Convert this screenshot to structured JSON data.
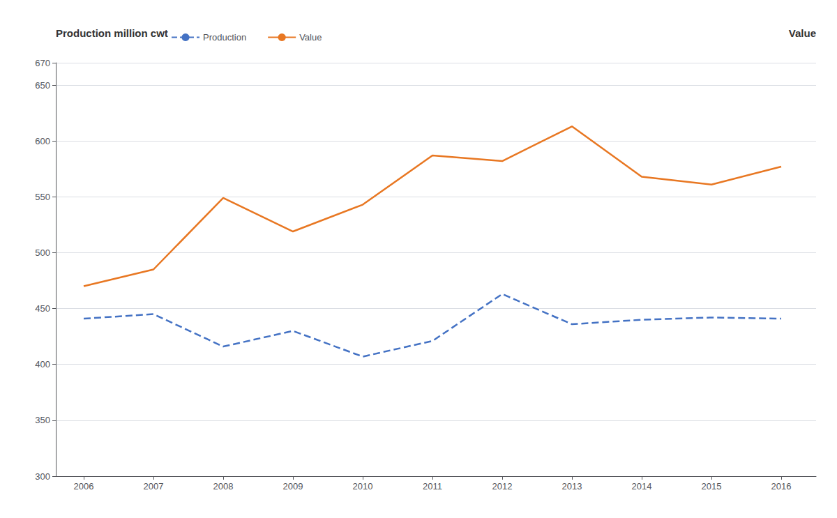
{
  "chart_data": {
    "type": "line",
    "ylabel": "Production million cwt",
    "annotations": [
      "Value"
    ],
    "x": [
      2006,
      2007,
      2008,
      2009,
      2010,
      2011,
      2012,
      2013,
      2014,
      2015,
      2016
    ],
    "series": [
      {
        "name": "Production",
        "color": "#4472C4",
        "line_style": "dashed",
        "values": [
          441,
          445,
          416,
          430,
          407,
          421,
          463,
          436,
          440,
          442,
          441
        ]
      },
      {
        "name": "Value",
        "color": "#E87722",
        "line_style": "solid",
        "values": [
          470,
          485,
          549,
          519,
          543,
          587,
          582,
          613,
          568,
          561,
          577
        ]
      }
    ],
    "xlim": [
      2005.6,
      2016.5
    ],
    "xticks": [
      2006,
      2007,
      2008,
      2009,
      2010,
      2011,
      2012,
      2013,
      2014,
      2015,
      2016
    ],
    "ylim": [
      300,
      670
    ],
    "yticks": [
      300,
      350,
      400,
      450,
      500,
      550,
      600,
      650
    ],
    "grid": true,
    "legend": "upper left"
  }
}
